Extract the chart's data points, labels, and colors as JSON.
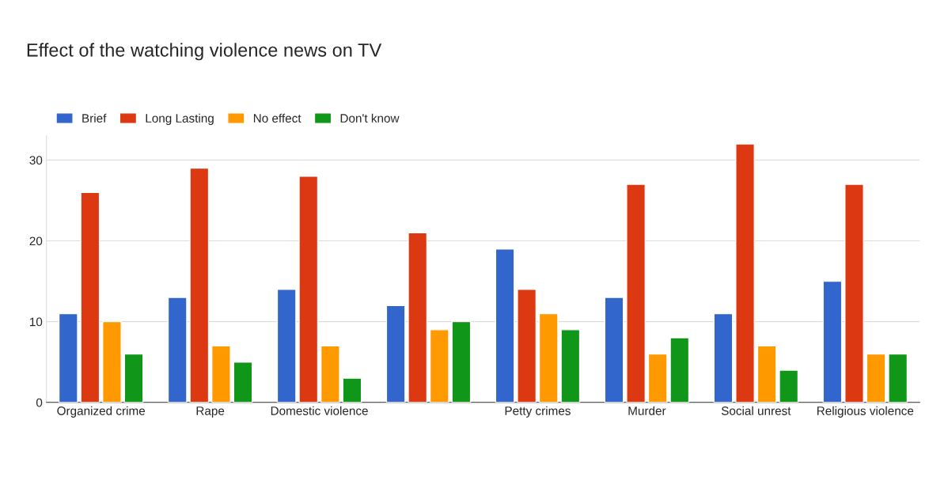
{
  "chart_data": {
    "type": "bar",
    "title": "Effect of the watching violence news on TV",
    "categories": [
      "Organized crime",
      "Rape",
      "Domestic violence",
      null,
      "Petty crimes",
      "Murder",
      "Social unrest",
      "Religious violence"
    ],
    "series": [
      {
        "name": "Brief",
        "color": "#3366cc",
        "values": [
          11,
          13,
          14,
          12,
          19,
          13,
          11,
          15
        ]
      },
      {
        "name": "Long Lasting",
        "color": "#dc3912",
        "values": [
          26,
          29,
          28,
          21,
          14,
          27,
          32,
          27
        ]
      },
      {
        "name": "No effect",
        "color": "#ff9900",
        "values": [
          10,
          7,
          7,
          9,
          11,
          6,
          7,
          6
        ]
      },
      {
        "name": "Don't know",
        "color": "#109618",
        "values": [
          6,
          5,
          3,
          10,
          9,
          8,
          4,
          6
        ]
      }
    ],
    "ylim": [
      0,
      33
    ],
    "yticks": [
      0,
      10,
      20,
      30
    ],
    "grid": "y",
    "legend": "top left"
  }
}
